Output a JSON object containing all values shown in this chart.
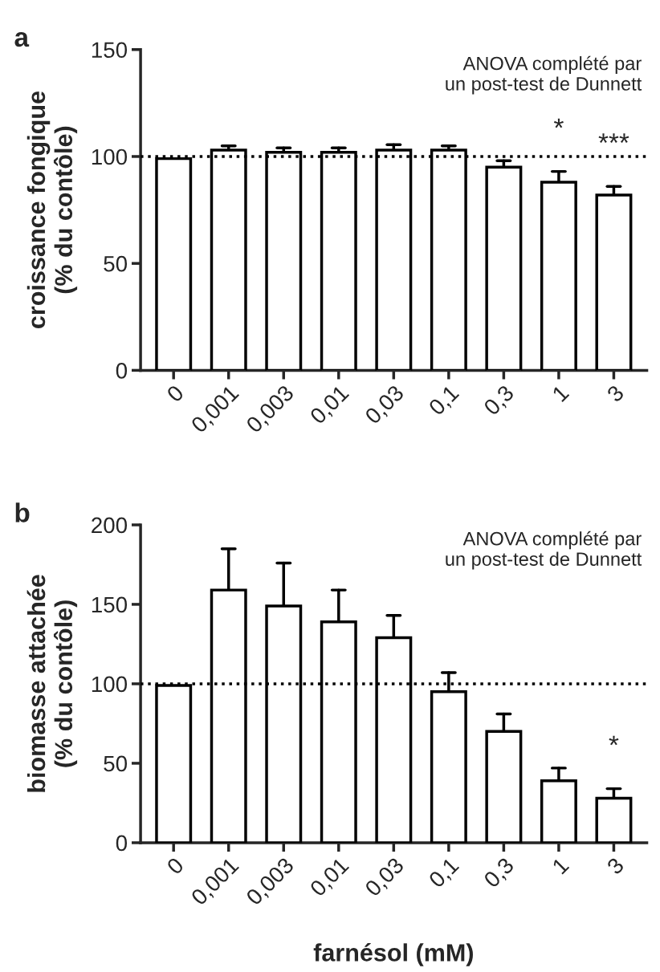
{
  "chart_data": [
    {
      "type": "bar",
      "title": "a",
      "ylabel": "croissance fongique\n(% du contôle)",
      "categories": [
        "0",
        "0,001",
        "0,003",
        "0,01",
        "0,03",
        "0,1",
        "0,3",
        "1",
        "3"
      ],
      "values": [
        99,
        103,
        102,
        102,
        103,
        103,
        95,
        88,
        82
      ],
      "errors": [
        null,
        [
          103,
          105
        ],
        [
          102,
          104
        ],
        [
          102,
          104
        ],
        [
          103,
          105.5
        ],
        [
          103,
          105
        ],
        [
          95,
          98
        ],
        [
          88,
          93
        ],
        [
          82,
          86
        ]
      ],
      "color": "#ffffff",
      "ylim": [
        0,
        150
      ],
      "yticks": [
        0,
        50,
        100,
        150
      ],
      "grid": false,
      "ref_lines": [
        {
          "axis": "y",
          "value": 100,
          "line_style": "dotted"
        }
      ],
      "annotations": [
        "ANOVA complété par\nun post-test de Dunnett",
        {
          "text": "*",
          "x": "1",
          "y": 93
        },
        {
          "text": "***",
          "x": "3",
          "y": 86
        }
      ]
    },
    {
      "type": "bar",
      "title": "b",
      "ylabel": "biomasse attachée\n(% du contôle)",
      "xlabel": "farnésol (mM)",
      "categories": [
        "0",
        "0,001",
        "0,003",
        "0,01",
        "0,03",
        "0,1",
        "0,3",
        "1",
        "3"
      ],
      "values": [
        99,
        159,
        149,
        139,
        129,
        95,
        70,
        39,
        28
      ],
      "errors": [
        null,
        [
          159,
          185
        ],
        [
          149,
          176
        ],
        [
          139,
          159
        ],
        [
          129,
          143
        ],
        [
          95,
          107
        ],
        [
          70,
          81
        ],
        [
          39,
          47
        ],
        [
          28,
          34
        ]
      ],
      "color": "#ffffff",
      "ylim": [
        0,
        200
      ],
      "yticks": [
        0,
        50,
        100,
        150,
        200
      ],
      "grid": false,
      "ref_lines": [
        {
          "axis": "y",
          "value": 100,
          "line_style": "dotted"
        }
      ],
      "annotations": [
        "ANOVA complété par\nun post-test de Dunnett",
        {
          "text": "*",
          "x": "3",
          "y": 34
        }
      ]
    }
  ]
}
